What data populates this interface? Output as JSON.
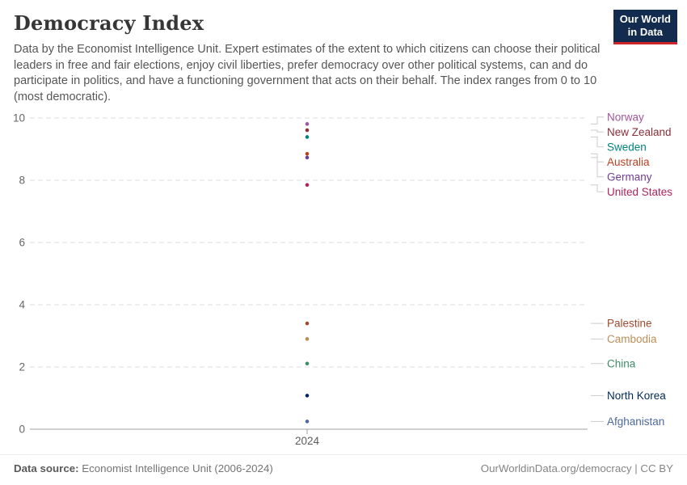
{
  "header": {
    "title": "Democracy Index",
    "subtitle": "Data by the Economist Intelligence Unit. Expert estimates of the extent to which citizens can choose their political leaders in free and fair elections, enjoy civil liberties, prefer democracy over other political systems, can and do participate in politics, and have a functioning government that acts on their behalf. The index ranges from 0 to 10 (most democratic).",
    "logo": {
      "line1": "Our World",
      "line2": "in Data",
      "bg_color": "#122B4E",
      "accent_color": "#CC2428"
    }
  },
  "chart_data": {
    "type": "scatter",
    "title": "Democracy Index",
    "x": [
      2024
    ],
    "x_tick_labels": [
      "2024"
    ],
    "xlabel": "",
    "ylabel": "",
    "ylim": [
      0,
      10
    ],
    "yticks": [
      0,
      2,
      4,
      6,
      8,
      10
    ],
    "grid": "dashed-horizontal",
    "legend_position": "right-entity-labels",
    "series": [
      {
        "name": "Norway",
        "value": 9.81,
        "color": "#A2559C"
      },
      {
        "name": "New Zealand",
        "value": 9.61,
        "color": "#883039"
      },
      {
        "name": "Sweden",
        "value": 9.39,
        "color": "#00847E"
      },
      {
        "name": "Australia",
        "value": 8.85,
        "color": "#BC4122"
      },
      {
        "name": "Germany",
        "value": 8.73,
        "color": "#6D3E91"
      },
      {
        "name": "United States",
        "value": 7.85,
        "color": "#AD245D"
      },
      {
        "name": "Palestine",
        "value": 3.4,
        "color": "#9E4B2D"
      },
      {
        "name": "Cambodia",
        "value": 2.9,
        "color": "#BC8E5A"
      },
      {
        "name": "China",
        "value": 2.11,
        "color": "#3C8E68"
      },
      {
        "name": "North Korea",
        "value": 1.08,
        "color": "#00295B"
      },
      {
        "name": "Afghanistan",
        "value": 0.25,
        "color": "#4C6A9C"
      }
    ]
  },
  "footer": {
    "source_label": "Data source:",
    "source_text": " Economist Intelligence Unit (2006-2024)",
    "credit": "OurWorldinData.org/democracy | CC BY"
  }
}
